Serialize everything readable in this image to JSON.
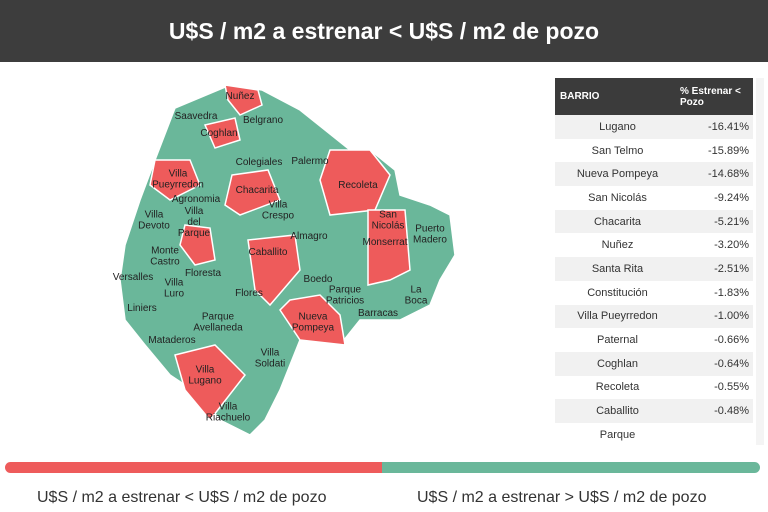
{
  "header": {
    "title": "U$S / m2 a estrenar < U$S / m2 de pozo"
  },
  "map": {
    "labels": [
      {
        "lines": [
          "Nuñez"
        ]
      },
      {
        "lines": [
          "Saavedra"
        ]
      },
      {
        "lines": [
          "Belgrano"
        ]
      },
      {
        "lines": [
          "Coghlan"
        ]
      },
      {
        "lines": [
          "Colegiales"
        ]
      },
      {
        "lines": [
          "Palermo"
        ]
      },
      {
        "lines": [
          "Villa",
          "Pueyrredon"
        ]
      },
      {
        "lines": [
          "Agronomia"
        ]
      },
      {
        "lines": [
          "Chacarita"
        ]
      },
      {
        "lines": [
          "Recoleta"
        ]
      },
      {
        "lines": [
          "Villa",
          "Crespo"
        ]
      },
      {
        "lines": [
          "Villa",
          "Devoto"
        ]
      },
      {
        "lines": [
          "Villa",
          "del",
          "Parque"
        ]
      },
      {
        "lines": [
          "San",
          "Nicolás"
        ]
      },
      {
        "lines": [
          "Monserrat"
        ]
      },
      {
        "lines": [
          "Puerto",
          "Madero"
        ]
      },
      {
        "lines": [
          "Almagro"
        ]
      },
      {
        "lines": [
          "Caballito"
        ]
      },
      {
        "lines": [
          "Monte",
          "Castro"
        ]
      },
      {
        "lines": [
          "Versalles"
        ]
      },
      {
        "lines": [
          "Villa",
          "Luro"
        ]
      },
      {
        "lines": [
          "Floresta"
        ]
      },
      {
        "lines": [
          "Boedo"
        ]
      },
      {
        "lines": [
          "Parque",
          "Patricios"
        ]
      },
      {
        "lines": [
          "La",
          "Boca"
        ]
      },
      {
        "lines": [
          "Liniers"
        ]
      },
      {
        "lines": [
          "Flores"
        ]
      },
      {
        "lines": [
          "Parque",
          "Avellaneda"
        ]
      },
      {
        "lines": [
          "Nueva",
          "Pompeya"
        ]
      },
      {
        "lines": [
          "Barracas"
        ]
      },
      {
        "lines": [
          "Mataderos"
        ]
      },
      {
        "lines": [
          "Villa",
          "Soldati"
        ]
      },
      {
        "lines": [
          "Villa",
          "Lugano"
        ]
      },
      {
        "lines": [
          "Villa",
          "Riachuelo"
        ]
      }
    ]
  },
  "table": {
    "columns": [
      "BARRIO",
      "% Estrenar < Pozo"
    ],
    "rows": [
      [
        "Lugano",
        "-16.41%"
      ],
      [
        "San Telmo",
        "-15.89%"
      ],
      [
        "Nueva Pompeya",
        "-14.68%"
      ],
      [
        "San Nicolás",
        "-9.24%"
      ],
      [
        "Chacarita",
        "-5.21%"
      ],
      [
        "Nuñez",
        "-3.20%"
      ],
      [
        "Santa Rita",
        "-2.51%"
      ],
      [
        "Constitución",
        "-1.83%"
      ],
      [
        "Villa Pueyrredon",
        "-1.00%"
      ],
      [
        "Paternal",
        "-0.66%"
      ],
      [
        "Coghlan",
        "-0.64%"
      ],
      [
        "Recoleta",
        "-0.55%"
      ],
      [
        "Caballito",
        "-0.48%"
      ],
      [
        "Parque"
      ]
    ]
  },
  "legend": {
    "items": [
      "U$S / m2 a estrenar < U$S / m2 de pozo",
      "U$S / m2 a estrenar > U$S / m2 de pozo"
    ]
  }
}
